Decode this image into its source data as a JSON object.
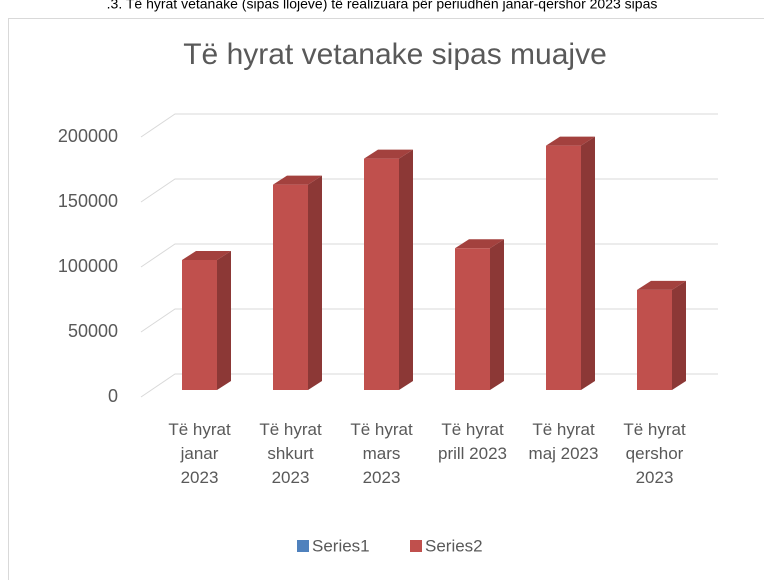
{
  "caption": ".3. Të hyrat vetanake (sipas llojeve) të realizuara për periudhën janar-qershor 2023 sipas",
  "chart_data": {
    "type": "bar3d",
    "title": "Të hyrat vetanake sipas muajve",
    "categories": [
      "Të hyrat janar 2023",
      "Të hyrat shkurt 2023",
      "Të hyrat mars 2023",
      "Të hyrat prill 2023",
      "Të hyrat maj 2023",
      "Të hyrat qershor 2023"
    ],
    "series": [
      {
        "name": "Series1",
        "color": "#4f81bd",
        "values": [
          null,
          null,
          null,
          null,
          null,
          null
        ]
      },
      {
        "name": "Series2",
        "color": "#c0504d",
        "values": [
          100000,
          158000,
          178000,
          109000,
          188000,
          77000
        ]
      }
    ],
    "ylim": [
      0,
      200000
    ],
    "yticks": [
      0,
      50000,
      100000,
      150000,
      200000
    ],
    "grid": true,
    "legend": "bottom"
  }
}
